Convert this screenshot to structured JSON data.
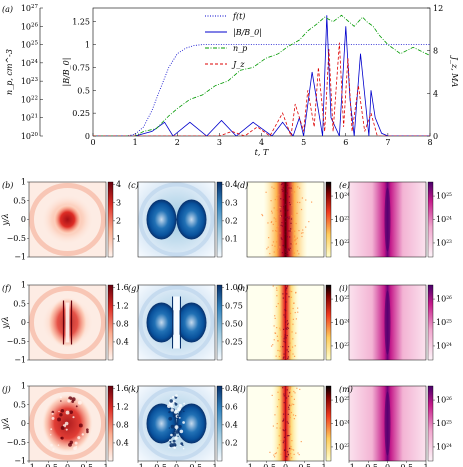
{
  "chart_data": [
    {
      "type": "line",
      "panel_label": "(a)",
      "xlabel": "t, T",
      "ylabel_left_outer": "n_p, cm^-3",
      "ylabel_left_inner": "|B/B_0|",
      "ylabel_right": "J_z, MA",
      "xlim": [
        0,
        8
      ],
      "x_ticks": [
        "0",
        "1",
        "2",
        "3",
        "4",
        "5",
        "6",
        "7",
        "8"
      ],
      "ylim_inner": [
        0,
        1.4
      ],
      "y_ticks_inner": [
        "0",
        "0.25",
        "0.5",
        "0.75",
        "1",
        "1.25"
      ],
      "y_ticks_outer": [
        "10^20",
        "10^21",
        "10^22",
        "10^23",
        "10^24",
        "10^25",
        "10^26",
        "10^27"
      ],
      "ylim_right": [
        0,
        12
      ],
      "y_ticks_right": [
        "0",
        "4",
        "8",
        "12"
      ],
      "legend_position": "top-center",
      "series": [
        {
          "name": "f(t)",
          "color": "#0000cc",
          "style": "dotted",
          "x": [
            0,
            0.8,
            1.0,
            1.2,
            1.4,
            1.6,
            1.8,
            2.0,
            2.2,
            2.4,
            2.6,
            3.0,
            4.0,
            5.0,
            6.0,
            6.5,
            7.0,
            8.0
          ],
          "y": [
            0,
            0,
            0.02,
            0.1,
            0.28,
            0.52,
            0.75,
            0.9,
            0.96,
            0.99,
            1.0,
            1.0,
            1.0,
            1.0,
            1.0,
            1.0,
            1.0,
            1.0
          ]
        },
        {
          "name": "|B/B_0|",
          "color": "#0000cc",
          "style": "solid",
          "x": [
            0,
            1.0,
            1.4,
            1.7,
            1.9,
            2.3,
            2.7,
            3.05,
            3.4,
            3.8,
            4.25,
            4.5,
            4.75,
            4.9,
            5.0,
            5.2,
            5.45,
            5.55,
            5.65,
            5.85,
            6.0,
            6.1,
            6.2,
            6.35,
            6.55,
            6.6,
            6.7,
            6.85,
            7.0,
            8.0
          ],
          "y": [
            0,
            0,
            0.05,
            0.15,
            0.0,
            0.15,
            0.0,
            0.17,
            0.0,
            0.15,
            0.0,
            0.15,
            0.0,
            0.2,
            0.0,
            0.7,
            0.0,
            1.32,
            0.2,
            0.0,
            1.2,
            0.4,
            0.0,
            0.9,
            0.0,
            0.5,
            0.2,
            0.03,
            0.0,
            0.0
          ]
        },
        {
          "name": "n_p",
          "color": "#009900",
          "style": "dash-dot",
          "x": [
            0,
            1.0,
            1.2,
            1.5,
            1.8,
            2.0,
            2.3,
            2.6,
            2.9,
            3.2,
            3.5,
            3.8,
            4.1,
            4.4,
            4.6,
            4.9,
            5.1,
            5.3,
            5.5,
            5.7,
            5.9,
            6.0,
            6.2,
            6.4,
            6.5,
            6.65,
            6.8,
            7.0,
            7.3,
            7.6,
            8.0
          ],
          "y": [
            0,
            0,
            0.05,
            0.08,
            0.22,
            0.3,
            0.4,
            0.45,
            0.55,
            0.6,
            0.72,
            0.75,
            0.85,
            0.9,
            0.97,
            1.05,
            1.15,
            1.22,
            1.3,
            1.25,
            1.32,
            1.28,
            1.2,
            1.3,
            1.25,
            1.2,
            1.1,
            1.0,
            0.9,
            0.97,
            0.88
          ]
        },
        {
          "name": "J_z",
          "color": "#dd0000",
          "style": "dashed",
          "x": [
            0,
            3.0,
            3.3,
            3.6,
            3.9,
            4.2,
            4.5,
            4.7,
            4.8,
            5.0,
            5.1,
            5.25,
            5.35,
            5.5,
            5.6,
            5.7,
            5.85,
            5.95,
            6.05,
            6.15,
            6.3,
            6.45,
            6.6,
            6.75,
            7.0,
            8.0
          ],
          "y": [
            0,
            0,
            0.05,
            0.0,
            0.1,
            0.0,
            0.25,
            0.0,
            0.35,
            0.05,
            0.5,
            0.1,
            0.75,
            0.05,
            0.95,
            0.05,
            1.02,
            0.1,
            0.85,
            0.05,
            0.55,
            0.05,
            0.25,
            0.0,
            0.0,
            0.0
          ]
        }
      ]
    },
    {
      "type": "heatmap",
      "rows": [
        {
          "panels": [
            {
              "label": "(b)",
              "kind": "field_bands",
              "cmap": "reds",
              "cbar_ticks": [
                "1",
                "2",
                "3",
                "4"
              ]
            },
            {
              "label": "(c)",
              "kind": "two_lobes",
              "cmap": "blues",
              "cbar_ticks": [
                "0.1",
                "0.2",
                "0.3",
                "0.4"
              ]
            },
            {
              "label": "(d)",
              "kind": "density_plume",
              "cmap": "hot",
              "cbar_ticks": [
                "10^22",
                "10^23",
                "10^24"
              ]
            },
            {
              "label": "(e)",
              "kind": "density_soft",
              "cmap": "purples",
              "cbar_ticks": [
                "10^23",
                "10^24",
                "10^25"
              ]
            }
          ]
        },
        {
          "panels": [
            {
              "label": "(f)",
              "kind": "field_center",
              "cmap": "reds",
              "cbar_ticks": [
                "0.4",
                "0.8",
                "1.2",
                "1.6"
              ]
            },
            {
              "label": "(g)",
              "kind": "two_lobes_slit",
              "cmap": "blues",
              "cbar_ticks": [
                "0.25",
                "0.50",
                "0.75",
                "1.00"
              ]
            },
            {
              "label": "(h)",
              "kind": "density_thin",
              "cmap": "hot",
              "cbar_ticks": [
                "10^23",
                "10^24",
                "10^25"
              ]
            },
            {
              "label": "(i)",
              "kind": "density_soft",
              "cmap": "purples",
              "cbar_ticks": [
                "10^24",
                "10^25",
                "10^26"
              ]
            }
          ]
        },
        {
          "panels": [
            {
              "label": "(j)",
              "kind": "field_turbulent",
              "cmap": "reds",
              "cbar_ticks": [
                "0.4",
                "0.8",
                "1.2",
                "1.6"
              ]
            },
            {
              "label": "(k)",
              "kind": "two_lobes_turbulent",
              "cmap": "blues",
              "cbar_ticks": [
                "0.2",
                "0.4",
                "0.6",
                "0.8"
              ]
            },
            {
              "label": "(l)",
              "kind": "density_thin",
              "cmap": "hot",
              "cbar_ticks": [
                "10^23",
                "10^24",
                "10^25"
              ]
            },
            {
              "label": "(m)",
              "kind": "density_soft",
              "cmap": "purples",
              "cbar_ticks": [
                "10^24",
                "10^25",
                "10^26"
              ]
            }
          ]
        }
      ],
      "xlabel": "x/λ",
      "ylabel": "y/λ",
      "x_ticks": [
        "−1",
        "−0.5",
        "0",
        "0.5",
        "1"
      ],
      "y_ticks": [
        "−1",
        "−0.5",
        "0",
        "0.5",
        "1"
      ]
    }
  ]
}
